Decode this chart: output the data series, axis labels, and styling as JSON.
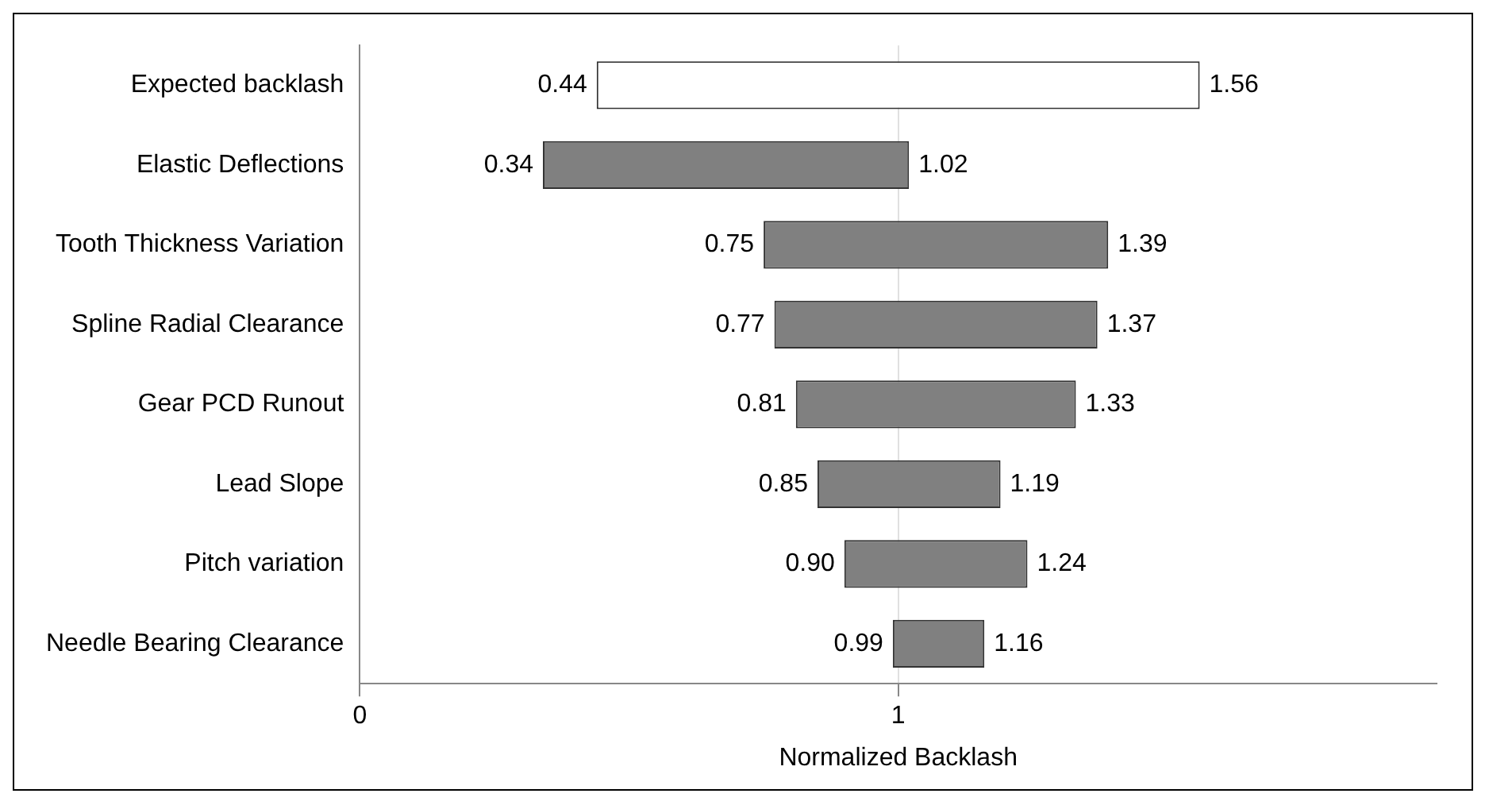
{
  "chart_data": {
    "type": "bar",
    "orientation": "horizontal",
    "xlabel": "Normalized Backlash",
    "categories": [
      "Expected backlash",
      "Elastic Deflections",
      "Tooth Thickness Variation",
      "Spline Radial Clearance",
      "Gear PCD Runout",
      "Lead Slope",
      "Pitch variation",
      "Needle Bearing Clearance"
    ],
    "base": [
      0.44,
      0.34,
      0.75,
      0.77,
      0.81,
      0.85,
      0.9,
      0.99
    ],
    "values": [
      1.12,
      0.68,
      0.64,
      0.6,
      0.52,
      0.34,
      0.34,
      0.17
    ],
    "colors": [
      "#ffffff",
      "#808080",
      "#808080",
      "#808080",
      "#808080",
      "#808080",
      "#808080",
      "#808080"
    ],
    "xlim": [
      0,
      2
    ],
    "xticks": [
      0,
      1
    ],
    "grid": "x",
    "legend": false,
    "annotations": [
      {
        "text": "0.44",
        "x": 0.44,
        "y": "Expected backlash"
      },
      {
        "text": "1.56",
        "x": 1.56,
        "y": "Expected backlash"
      },
      {
        "text": "0.34",
        "x": 0.34,
        "y": "Elastic Deflections"
      },
      {
        "text": "1.02",
        "x": 1.02,
        "y": "Elastic Deflections"
      },
      {
        "text": "0.75",
        "x": 0.75,
        "y": "Tooth Thickness Variation"
      },
      {
        "text": "1.39",
        "x": 1.39,
        "y": "Tooth Thickness Variation"
      },
      {
        "text": "0.77",
        "x": 0.77,
        "y": "Spline Radial Clearance"
      },
      {
        "text": "1.37",
        "x": 1.37,
        "y": "Spline Radial Clearance"
      },
      {
        "text": "0.81",
        "x": 0.81,
        "y": "Gear PCD Runout"
      },
      {
        "text": "1.33",
        "x": 1.33,
        "y": "Gear PCD Runout"
      },
      {
        "text": "0.85",
        "x": 0.85,
        "y": "Lead Slope"
      },
      {
        "text": "1.19",
        "x": 1.19,
        "y": "Lead Slope"
      },
      {
        "text": "0.90",
        "x": 0.9,
        "y": "Pitch variation"
      },
      {
        "text": "1.24",
        "x": 1.24,
        "y": "Pitch variation"
      },
      {
        "text": "0.99",
        "x": 0.99,
        "y": "Needle Bearing Clearance"
      },
      {
        "text": "1.16",
        "x": 1.16,
        "y": "Needle Bearing Clearance"
      }
    ]
  }
}
